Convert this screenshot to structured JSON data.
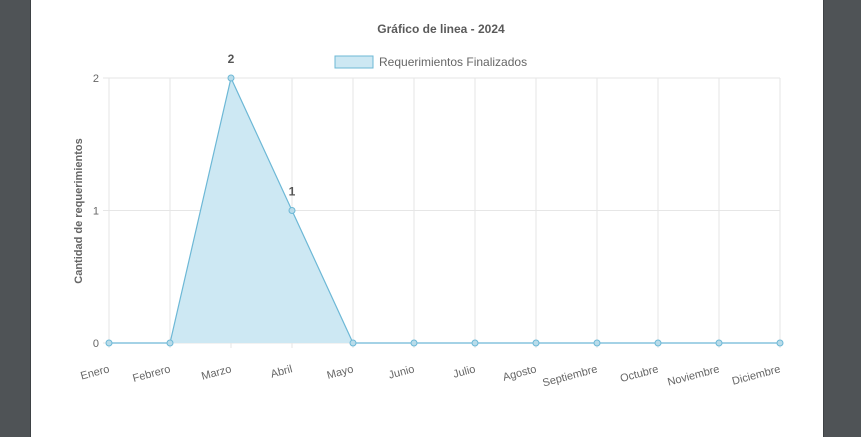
{
  "chart_data": {
    "type": "area",
    "title": "Gráfico de linea - 2024",
    "ylabel": "Cantidad de requerimientos",
    "xlabel": "",
    "categories": [
      "Enero",
      "Febrero",
      "Marzo",
      "Abril",
      "Mayo",
      "Junio",
      "Julio",
      "Agosto",
      "Septiembre",
      "Octubre",
      "Noviembre",
      "Diciembre"
    ],
    "series": [
      {
        "name": "Requerimientos Finalizados",
        "values": [
          0,
          0,
          2,
          1,
          0,
          0,
          0,
          0,
          0,
          0,
          0,
          0
        ]
      }
    ],
    "data_labels": [
      {
        "index": 2,
        "text": "2"
      },
      {
        "index": 3,
        "text": "1"
      }
    ],
    "ylim": [
      0,
      2
    ],
    "yticks": [
      "0",
      "1",
      "2"
    ],
    "grid": true,
    "legend_position": "top-center",
    "colors": {
      "line": "#6db8d6",
      "fill": "#cde8f3",
      "grid": "#e6e6e6",
      "point": "#b9dcea"
    }
  }
}
